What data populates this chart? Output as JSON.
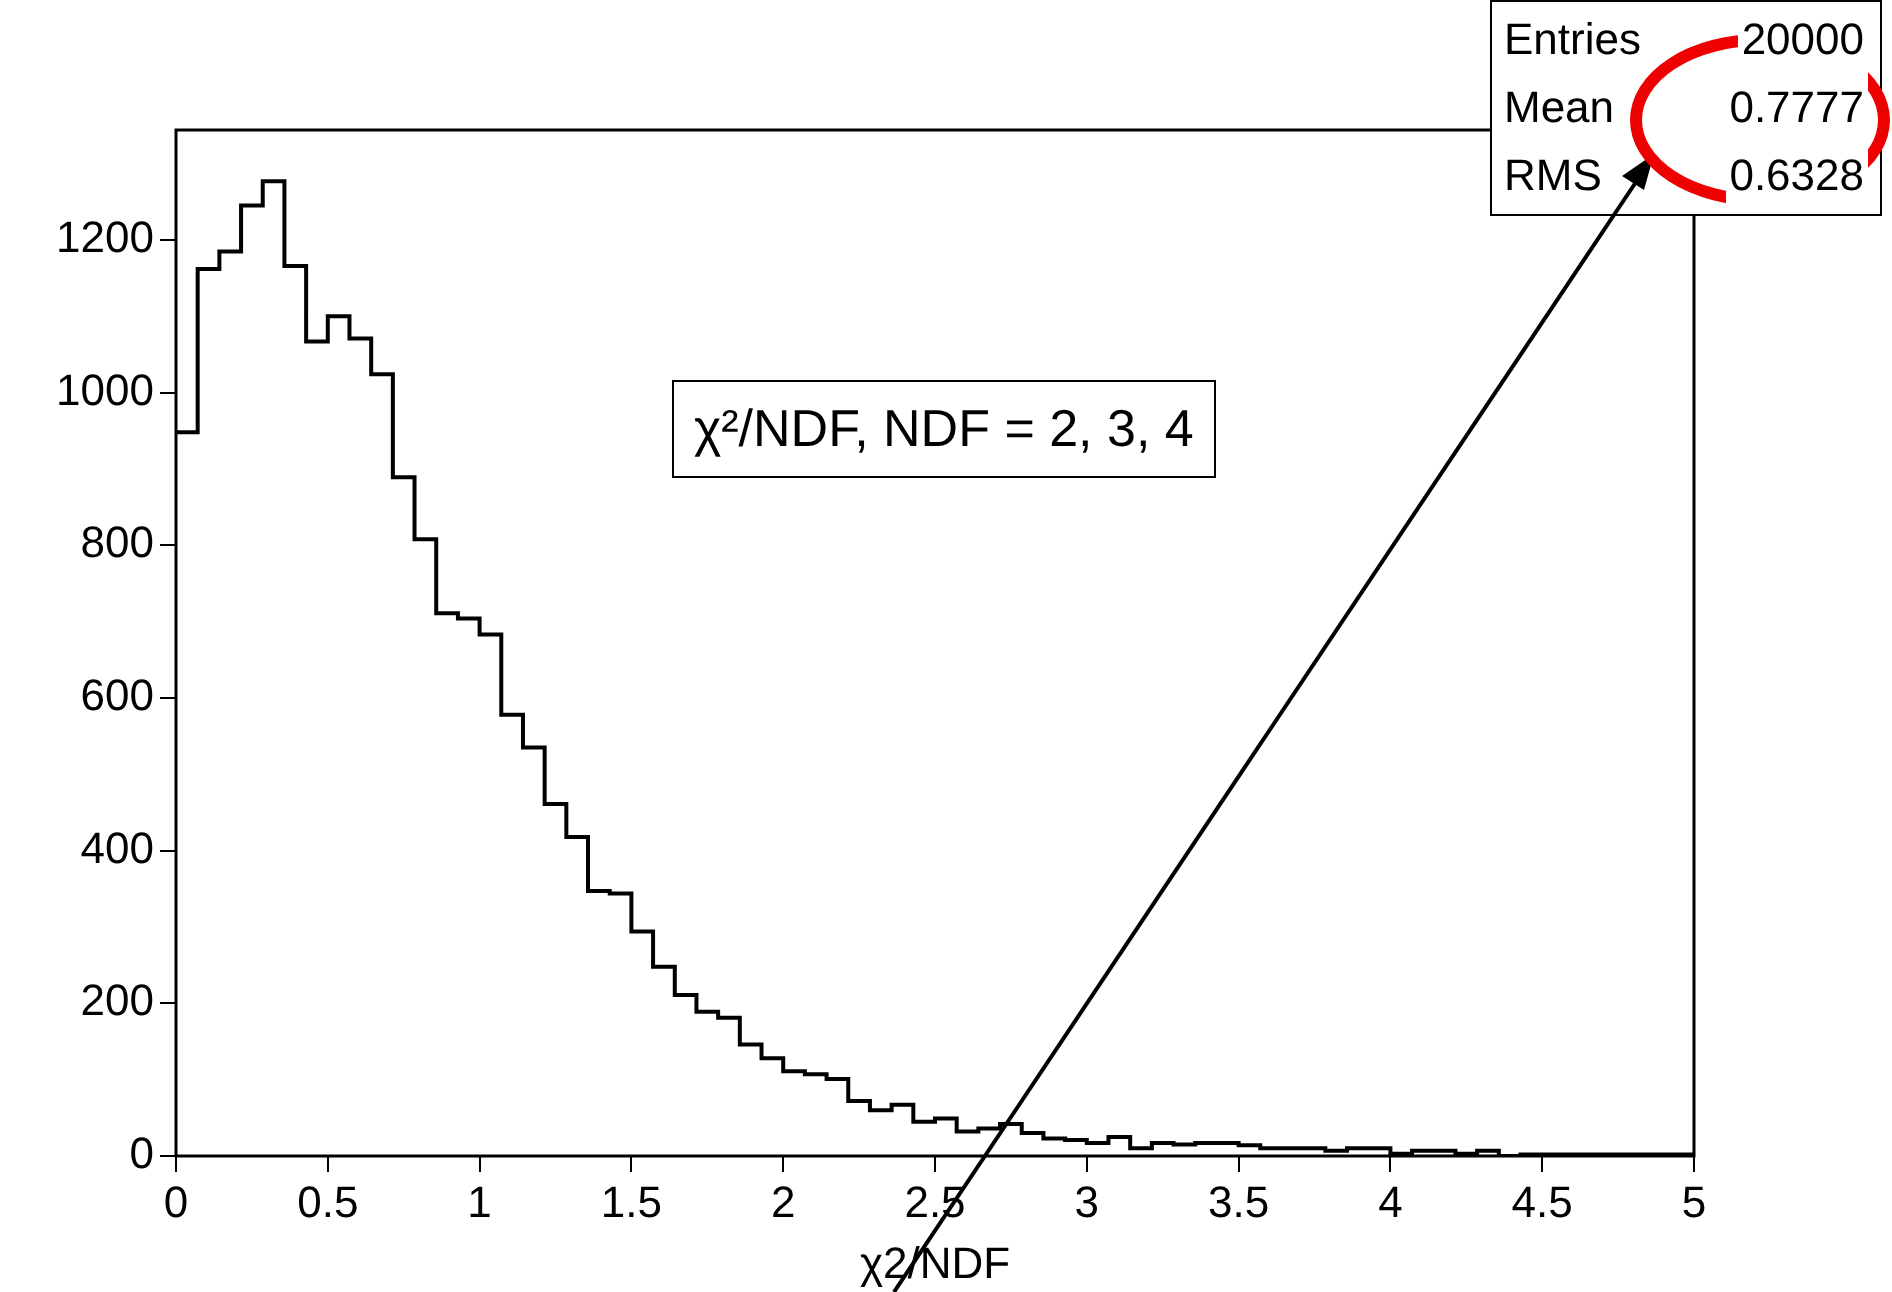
{
  "chart_data": {
    "type": "histogram",
    "xlabel": "χ2/NDF",
    "bins": [
      0,
      0.0714,
      0.1429,
      0.2143,
      0.2857,
      0.3571,
      0.4286,
      0.5,
      0.5714,
      0.6429,
      0.7143,
      0.7857,
      0.8571,
      0.9286,
      1,
      1.0714,
      1.1429,
      1.2143,
      1.2857,
      1.3571,
      1.4286,
      1.5,
      1.5714,
      1.6429,
      1.7143,
      1.7857,
      1.8571,
      1.9286,
      2,
      2.0714,
      2.1429,
      2.2143,
      2.2857,
      2.3571,
      2.4286,
      2.5,
      2.5714,
      2.6429,
      2.7143,
      2.7857,
      2.8571,
      2.9286,
      3,
      3.0714,
      3.1429,
      3.2143,
      3.2857,
      3.3571,
      3.4286,
      3.5,
      3.5714,
      3.6429,
      3.7143,
      3.7857,
      3.8571,
      3.9286,
      4,
      4.0714,
      4.1429,
      4.2143,
      4.2857,
      4.3571,
      4.4286,
      4.5,
      4.5714,
      4.6429,
      4.7143,
      4.7857,
      4.8571,
      4.9286,
      5
    ],
    "values": [
      948,
      1162,
      1185,
      1245,
      1277,
      1166,
      1067,
      1100,
      1071,
      1024,
      889,
      808,
      711,
      704,
      683,
      578,
      535,
      461,
      418,
      347,
      344,
      294,
      248,
      211,
      189,
      181,
      146,
      128,
      111,
      107,
      101,
      72,
      60,
      67,
      45,
      49,
      32,
      36,
      42,
      30,
      23,
      21,
      17,
      25,
      10,
      17,
      15,
      17,
      17,
      14,
      10,
      10,
      10,
      7,
      10,
      10,
      3,
      7,
      7,
      3,
      7,
      0,
      2,
      2,
      2,
      2,
      2,
      2,
      2,
      2
    ],
    "color": "#000000",
    "xlim": [
      0,
      5
    ],
    "xticks": [
      0,
      0.5,
      1,
      1.5,
      2,
      2.5,
      3,
      3.5,
      4,
      4.5,
      5
    ],
    "ylim": [
      0,
      1344
    ],
    "yticks": [
      0,
      200,
      400,
      600,
      800,
      1000,
      1200
    ],
    "annotations": [
      "χ²/NDF, NDF = 2, 3, 4",
      "Entries 20000",
      "Mean 0.7777",
      "RMS 0.6328"
    ]
  }
}
